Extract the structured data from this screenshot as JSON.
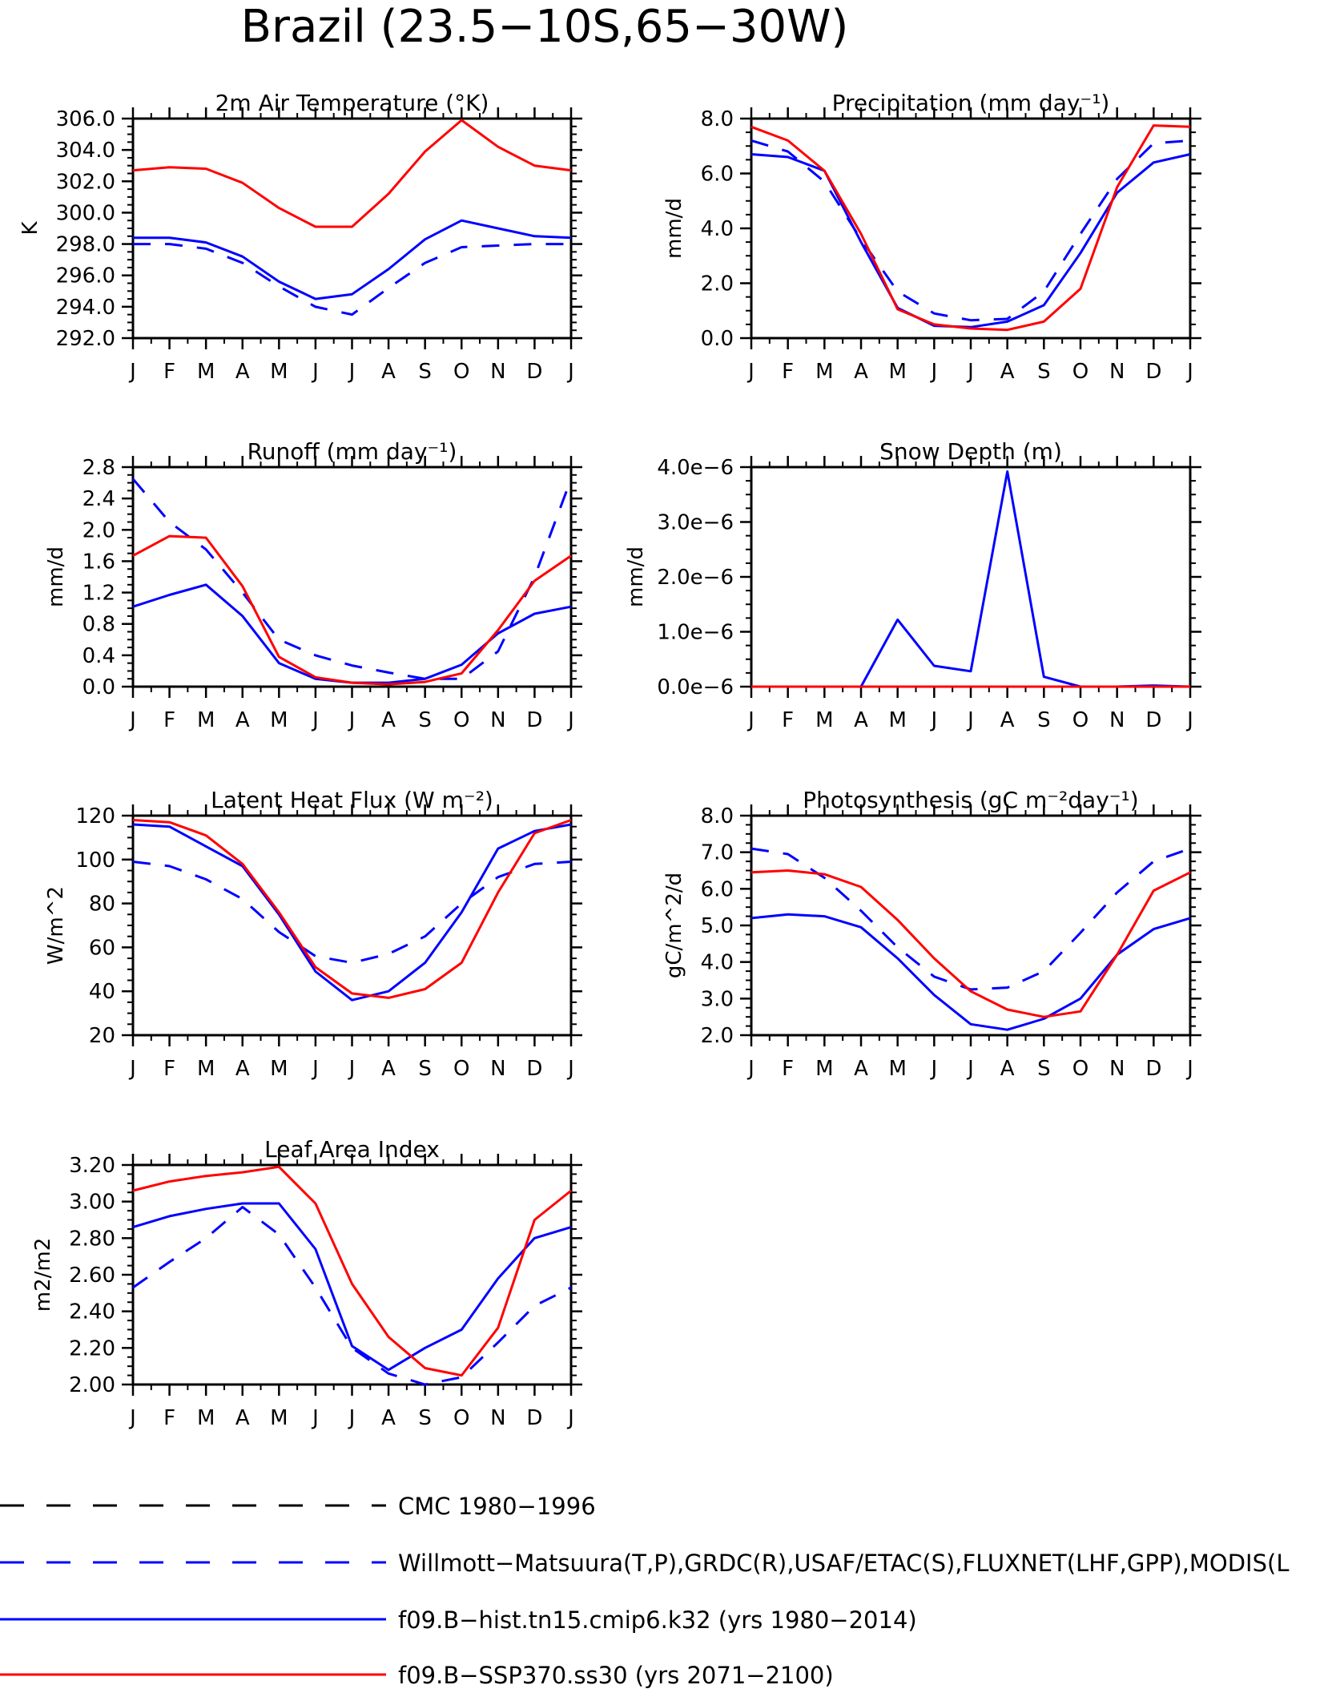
{
  "title": "Brazil (23.5−10S,65−30W)",
  "colors": {
    "red": "#ff0000",
    "blue": "#0000ff",
    "black": "#000000"
  },
  "legend": [
    {
      "label": "CMC 1980−1996",
      "color": "#000000",
      "dash": "dashed"
    },
    {
      "label": "Willmott−Matsuura(T,P),GRDC(R),USAF/ETAC(S),FLUXNET(LHF,GPP),MODIS(L",
      "color": "#0000ff",
      "dash": "dashed"
    },
    {
      "label": "f09.B−hist.tn15.cmip6.k32 (yrs 1980−2014)",
      "color": "#0000ff",
      "dash": "solid"
    },
    {
      "label": "f09.B−SSP370.ss30 (yrs 2071−2100)",
      "color": "#ff0000",
      "dash": "solid"
    }
  ],
  "chart_data": [
    {
      "type": "line",
      "title": "2m Air Temperature (°K)",
      "ylabel": "K",
      "categories": [
        "J",
        "F",
        "M",
        "A",
        "M",
        "J",
        "J",
        "A",
        "S",
        "O",
        "N",
        "D",
        "J"
      ],
      "ylim": [
        292.0,
        306.0
      ],
      "yticks": [
        "292.0",
        "294.0",
        "296.0",
        "298.0",
        "300.0",
        "302.0",
        "304.0",
        "306.0"
      ],
      "series": [
        {
          "name": "Willmott−Matsuura(T,P),GRDC(R),USAF/ETAC(S),FLUXNET(LHF,GPP),MODIS(L",
          "color": "#0000ff",
          "dash": "dashed",
          "values": [
            298.0,
            298.0,
            297.7,
            296.8,
            295.3,
            294.0,
            293.5,
            295.2,
            296.8,
            297.8,
            297.9,
            298.0,
            298.0
          ]
        },
        {
          "name": "f09.B−hist.tn15.cmip6.k32 (yrs 1980−2014)",
          "color": "#0000ff",
          "dash": "solid",
          "values": [
            298.4,
            298.4,
            298.1,
            297.2,
            295.6,
            294.5,
            294.8,
            296.4,
            298.3,
            299.5,
            299.0,
            298.5,
            298.4
          ]
        },
        {
          "name": "f09.B−SSP370.ss30 (yrs 2071−2100)",
          "color": "#ff0000",
          "dash": "solid",
          "values": [
            302.7,
            302.9,
            302.8,
            301.9,
            300.3,
            299.1,
            299.1,
            301.2,
            303.9,
            305.9,
            304.2,
            303.0,
            302.7
          ]
        }
      ]
    },
    {
      "type": "line",
      "title": "Precipitation (mm day⁻¹)",
      "ylabel": "mm/d",
      "categories": [
        "J",
        "F",
        "M",
        "A",
        "M",
        "J",
        "J",
        "A",
        "S",
        "O",
        "N",
        "D",
        "J"
      ],
      "ylim": [
        0.0,
        8.0
      ],
      "yticks": [
        "0.0",
        "2.0",
        "4.0",
        "6.0",
        "8.0"
      ],
      "series": [
        {
          "name": "Willmott−Matsuura(T,P),GRDC(R),USAF/ETAC(S),FLUXNET(LHF,GPP),MODIS(L",
          "color": "#0000ff",
          "dash": "dashed",
          "values": [
            7.2,
            6.8,
            5.7,
            3.6,
            1.7,
            0.9,
            0.65,
            0.7,
            1.7,
            3.8,
            5.8,
            7.1,
            7.2
          ]
        },
        {
          "name": "f09.B−hist.tn15.cmip6.k32 (yrs 1980−2014)",
          "color": "#0000ff",
          "dash": "solid",
          "values": [
            6.7,
            6.6,
            6.1,
            3.5,
            1.1,
            0.45,
            0.4,
            0.6,
            1.2,
            3.1,
            5.3,
            6.4,
            6.7
          ]
        },
        {
          "name": "f09.B−SSP370.ss30 (yrs 2071−2100)",
          "color": "#ff0000",
          "dash": "solid",
          "values": [
            7.7,
            7.2,
            6.1,
            3.8,
            1.05,
            0.5,
            0.35,
            0.3,
            0.6,
            1.8,
            5.5,
            7.75,
            7.7
          ]
        }
      ]
    },
    {
      "type": "line",
      "title": "Runoff (mm day⁻¹)",
      "ylabel": "mm/d",
      "categories": [
        "J",
        "F",
        "M",
        "A",
        "M",
        "J",
        "J",
        "A",
        "S",
        "O",
        "N",
        "D",
        "J"
      ],
      "ylim": [
        0.0,
        2.8
      ],
      "yticks": [
        "0.0",
        "0.4",
        "0.8",
        "1.2",
        "1.6",
        "2.0",
        "2.4",
        "2.8"
      ],
      "series": [
        {
          "name": "Willmott−Matsuura(T,P),GRDC(R),USAF/ETAC(S),FLUXNET(LHF,GPP),MODIS(L",
          "color": "#0000ff",
          "dash": "dashed",
          "values": [
            2.65,
            2.1,
            1.75,
            1.2,
            0.6,
            0.4,
            0.27,
            0.18,
            0.1,
            0.1,
            0.45,
            1.4,
            2.65
          ]
        },
        {
          "name": "f09.B−hist.tn15.cmip6.k32 (yrs 1980−2014)",
          "color": "#0000ff",
          "dash": "solid",
          "values": [
            1.02,
            1.17,
            1.3,
            0.9,
            0.3,
            0.1,
            0.05,
            0.05,
            0.1,
            0.28,
            0.68,
            0.93,
            1.02
          ]
        },
        {
          "name": "f09.B−SSP370.ss30 (yrs 2071−2100)",
          "color": "#ff0000",
          "dash": "solid",
          "values": [
            1.67,
            1.92,
            1.9,
            1.28,
            0.38,
            0.12,
            0.05,
            0.03,
            0.06,
            0.17,
            0.72,
            1.35,
            1.67
          ]
        }
      ]
    },
    {
      "type": "line",
      "title": "Snow Depth (m)",
      "ylabel": "mm/d",
      "categories": [
        "J",
        "F",
        "M",
        "A",
        "M",
        "J",
        "J",
        "A",
        "S",
        "O",
        "N",
        "D",
        "J"
      ],
      "ylim": [
        0.0,
        4e-06
      ],
      "yticks": [
        "0.0e−6",
        "1.0e−6",
        "2.0e−6",
        "3.0e−6",
        "4.0e−6"
      ],
      "series": [
        {
          "name": "f09.B−hist.tn15.cmip6.k32 (yrs 1980−2014)",
          "color": "#0000ff",
          "dash": "solid",
          "values": [
            0,
            0,
            0,
            0,
            1.22e-06,
            3.8e-07,
            2.8e-07,
            3.92e-06,
            1.8e-07,
            0,
            0,
            2e-08,
            0
          ]
        },
        {
          "name": "f09.B−SSP370.ss30 (yrs 2071−2100)",
          "color": "#ff0000",
          "dash": "solid",
          "values": [
            0,
            0,
            0,
            0,
            0,
            0,
            0,
            0,
            0,
            0,
            0,
            0,
            0
          ]
        }
      ]
    },
    {
      "type": "line",
      "title": "Latent Heat Flux (W m⁻²)",
      "ylabel": "W/m^2",
      "categories": [
        "J",
        "F",
        "M",
        "A",
        "M",
        "J",
        "J",
        "A",
        "S",
        "O",
        "N",
        "D",
        "J"
      ],
      "ylim": [
        20,
        120
      ],
      "yticks": [
        "20",
        "40",
        "60",
        "80",
        "100",
        "120"
      ],
      "series": [
        {
          "name": "Willmott−Matsuura(T,P),GRDC(R),USAF/ETAC(S),FLUXNET(LHF,GPP),MODIS(L",
          "color": "#0000ff",
          "dash": "dashed",
          "values": [
            99,
            97,
            91,
            82,
            67,
            56,
            53,
            57,
            65,
            80,
            92,
            98,
            99
          ]
        },
        {
          "name": "f09.B−hist.tn15.cmip6.k32 (yrs 1980−2014)",
          "color": "#0000ff",
          "dash": "solid",
          "values": [
            116,
            115,
            106,
            97,
            75,
            49,
            36,
            40,
            53,
            76,
            105,
            113,
            116
          ]
        },
        {
          "name": "f09.B−SSP370.ss30 (yrs 2071−2100)",
          "color": "#ff0000",
          "dash": "solid",
          "values": [
            118,
            117,
            111,
            98,
            76,
            51,
            39,
            37,
            41,
            53,
            85,
            112,
            118
          ]
        }
      ]
    },
    {
      "type": "line",
      "title": "Photosynthesis (gC m⁻²day⁻¹)",
      "ylabel": "gC/m^2/d",
      "categories": [
        "J",
        "F",
        "M",
        "A",
        "M",
        "J",
        "J",
        "A",
        "S",
        "O",
        "N",
        "D",
        "J"
      ],
      "ylim": [
        2.0,
        8.0
      ],
      "yticks": [
        "2.0",
        "3.0",
        "4.0",
        "5.0",
        "6.0",
        "7.0",
        "8.0"
      ],
      "series": [
        {
          "name": "Willmott−Matsuura(T,P),GRDC(R),USAF/ETAC(S),FLUXNET(LHF,GPP),MODIS(L",
          "color": "#0000ff",
          "dash": "dashed",
          "values": [
            7.1,
            6.95,
            6.3,
            5.4,
            4.4,
            3.6,
            3.25,
            3.3,
            3.75,
            4.8,
            5.9,
            6.75,
            7.1
          ]
        },
        {
          "name": "f09.B−hist.tn15.cmip6.k32 (yrs 1980−2014)",
          "color": "#0000ff",
          "dash": "solid",
          "values": [
            5.2,
            5.3,
            5.25,
            4.95,
            4.1,
            3.1,
            2.3,
            2.15,
            2.45,
            3.0,
            4.2,
            4.9,
            5.2
          ]
        },
        {
          "name": "f09.B−SSP370.ss30 (yrs 2071−2100)",
          "color": "#ff0000",
          "dash": "solid",
          "values": [
            6.45,
            6.5,
            6.4,
            6.05,
            5.15,
            4.1,
            3.2,
            2.7,
            2.5,
            2.65,
            4.2,
            5.95,
            6.45
          ]
        }
      ]
    },
    {
      "type": "line",
      "title": "Leaf Area Index",
      "ylabel": "m2/m2",
      "categories": [
        "J",
        "F",
        "M",
        "A",
        "M",
        "J",
        "J",
        "A",
        "S",
        "O",
        "N",
        "D",
        "J"
      ],
      "ylim": [
        2.0,
        3.2
      ],
      "yticks": [
        "2.00",
        "2.20",
        "2.40",
        "2.60",
        "2.80",
        "3.00",
        "3.20"
      ],
      "series": [
        {
          "name": "Willmott−Matsuura(T,P),GRDC(R),USAF/ETAC(S),FLUXNET(LHF,GPP),MODIS(L",
          "color": "#0000ff",
          "dash": "dashed",
          "values": [
            2.53,
            2.67,
            2.8,
            2.97,
            2.82,
            2.53,
            2.2,
            2.06,
            2.0,
            2.04,
            2.23,
            2.43,
            2.53
          ]
        },
        {
          "name": "f09.B−hist.tn15.cmip6.k32 (yrs 1980−2014)",
          "color": "#0000ff",
          "dash": "solid",
          "values": [
            2.86,
            2.92,
            2.96,
            2.99,
            2.99,
            2.74,
            2.21,
            2.08,
            2.2,
            2.3,
            2.58,
            2.8,
            2.86
          ]
        },
        {
          "name": "f09.B−SSP370.ss30 (yrs 2071−2100)",
          "color": "#ff0000",
          "dash": "solid",
          "values": [
            3.06,
            3.11,
            3.14,
            3.16,
            3.19,
            2.99,
            2.55,
            2.26,
            2.09,
            2.05,
            2.31,
            2.9,
            3.06
          ]
        }
      ]
    }
  ]
}
